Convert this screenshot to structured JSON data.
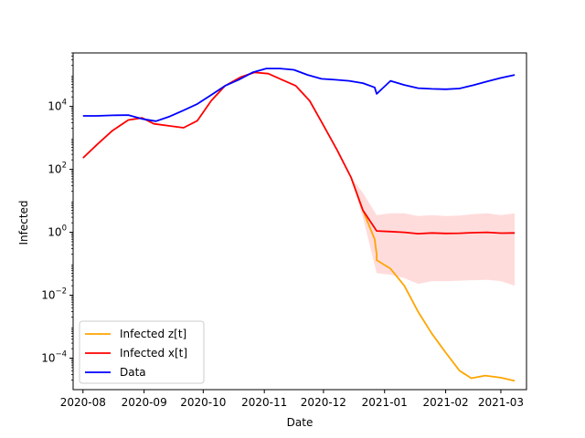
{
  "chart_data": {
    "type": "line",
    "title": "",
    "xlabel": "Date",
    "ylabel": "Infected",
    "yscale": "log",
    "ylim": [
      1e-05,
      500000
    ],
    "xlim": [
      "2020-07-27",
      "2021-03-14"
    ],
    "grid": false,
    "legend_position": "lower-left",
    "x_ticks": [
      "2020-08",
      "2020-09",
      "2020-10",
      "2020-11",
      "2020-12",
      "2021-01",
      "2021-02",
      "2021-03"
    ],
    "x_tick_dates": [
      "2020-08-01",
      "2020-09-01",
      "2020-10-01",
      "2020-11-01",
      "2020-12-01",
      "2021-01-01",
      "2021-02-01",
      "2021-03-01"
    ],
    "y_ticks": [
      {
        "value": 0.0001,
        "label_base": "10",
        "label_exp": "−4"
      },
      {
        "value": 0.01,
        "label_base": "10",
        "label_exp": "−2"
      },
      {
        "value": 1,
        "label_base": "10",
        "label_exp": "0"
      },
      {
        "value": 100,
        "label_base": "10",
        "label_exp": "2"
      },
      {
        "value": 10000,
        "label_base": "10",
        "label_exp": "4"
      }
    ],
    "band": {
      "color": "#ffdcdc",
      "points": [
        {
          "x": "2020-12-15",
          "lo": 55,
          "hi": 55
        },
        {
          "x": "2020-12-21",
          "lo": 3,
          "hi": 18
        },
        {
          "x": "2020-12-28",
          "lo": 0.05,
          "hi": 3.5
        },
        {
          "x": "2021-01-04",
          "lo": 0.045,
          "hi": 4
        },
        {
          "x": "2021-01-11",
          "lo": 0.035,
          "hi": 4
        },
        {
          "x": "2021-01-18",
          "lo": 0.023,
          "hi": 3.3
        },
        {
          "x": "2021-01-25",
          "lo": 0.028,
          "hi": 3.5
        },
        {
          "x": "2021-02-01",
          "lo": 0.028,
          "hi": 3.3
        },
        {
          "x": "2021-02-08",
          "lo": 0.029,
          "hi": 3.4
        },
        {
          "x": "2021-02-15",
          "lo": 0.03,
          "hi": 3.8
        },
        {
          "x": "2021-02-22",
          "lo": 0.031,
          "hi": 4
        },
        {
          "x": "2021-03-01",
          "lo": 0.028,
          "hi": 3.5
        },
        {
          "x": "2021-03-08",
          "lo": 0.02,
          "hi": 4
        }
      ]
    },
    "series": [
      {
        "name": "Infected z[t]",
        "color": "#ffa500",
        "points": [
          {
            "x": "2020-12-15",
            "y": 55
          },
          {
            "x": "2020-12-21",
            "y": 5
          },
          {
            "x": "2020-12-27",
            "y": 0.6
          },
          {
            "x": "2020-12-28",
            "y": 0.2
          },
          {
            "x": "2020-12-28",
            "y": 0.13
          },
          {
            "x": "2021-01-04",
            "y": 0.07
          },
          {
            "x": "2021-01-11",
            "y": 0.02
          },
          {
            "x": "2021-01-18",
            "y": 0.003
          },
          {
            "x": "2021-01-25",
            "y": 0.0006
          },
          {
            "x": "2021-02-01",
            "y": 0.00015
          },
          {
            "x": "2021-02-08",
            "y": 4e-05
          },
          {
            "x": "2021-02-14",
            "y": 2.3e-05
          },
          {
            "x": "2021-02-21",
            "y": 2.8e-05
          },
          {
            "x": "2021-03-01",
            "y": 2.4e-05
          },
          {
            "x": "2021-03-08",
            "y": 1.9e-05
          }
        ]
      },
      {
        "name": "Infected x[t]",
        "color": "#ff0000",
        "points": [
          {
            "x": "2020-08-01",
            "y": 230
          },
          {
            "x": "2020-08-08",
            "y": 600
          },
          {
            "x": "2020-08-16",
            "y": 1700
          },
          {
            "x": "2020-08-24",
            "y": 3700
          },
          {
            "x": "2020-08-31",
            "y": 4300
          },
          {
            "x": "2020-09-06",
            "y": 2800
          },
          {
            "x": "2020-09-14",
            "y": 2400
          },
          {
            "x": "2020-09-21",
            "y": 2100
          },
          {
            "x": "2020-09-28",
            "y": 3500
          },
          {
            "x": "2020-10-05",
            "y": 15000
          },
          {
            "x": "2020-10-12",
            "y": 45000
          },
          {
            "x": "2020-10-20",
            "y": 85000
          },
          {
            "x": "2020-10-27",
            "y": 120000
          },
          {
            "x": "2020-11-03",
            "y": 110000
          },
          {
            "x": "2020-11-10",
            "y": 70000
          },
          {
            "x": "2020-11-17",
            "y": 45000
          },
          {
            "x": "2020-11-24",
            "y": 15000
          },
          {
            "x": "2020-12-01",
            "y": 2500
          },
          {
            "x": "2020-12-08",
            "y": 400
          },
          {
            "x": "2020-12-15",
            "y": 55
          },
          {
            "x": "2020-12-21",
            "y": 5
          },
          {
            "x": "2020-12-28",
            "y": 1.1
          },
          {
            "x": "2021-01-04",
            "y": 1.05
          },
          {
            "x": "2021-01-11",
            "y": 1.0
          },
          {
            "x": "2021-01-18",
            "y": 0.9
          },
          {
            "x": "2021-01-25",
            "y": 0.95
          },
          {
            "x": "2021-02-01",
            "y": 0.92
          },
          {
            "x": "2021-02-08",
            "y": 0.93
          },
          {
            "x": "2021-02-15",
            "y": 0.97
          },
          {
            "x": "2021-02-22",
            "y": 1.0
          },
          {
            "x": "2021-03-01",
            "y": 0.94
          },
          {
            "x": "2021-03-08",
            "y": 0.95
          }
        ]
      },
      {
        "name": "Data",
        "color": "#0000ff",
        "points": [
          {
            "x": "2020-08-01",
            "y": 5000
          },
          {
            "x": "2020-08-08",
            "y": 5000
          },
          {
            "x": "2020-08-16",
            "y": 5200
          },
          {
            "x": "2020-08-24",
            "y": 5300
          },
          {
            "x": "2020-08-31",
            "y": 4000
          },
          {
            "x": "2020-09-07",
            "y": 3400
          },
          {
            "x": "2020-09-14",
            "y": 4800
          },
          {
            "x": "2020-09-21",
            "y": 7500
          },
          {
            "x": "2020-09-28",
            "y": 12000
          },
          {
            "x": "2020-10-05",
            "y": 23000
          },
          {
            "x": "2020-10-12",
            "y": 45000
          },
          {
            "x": "2020-10-19",
            "y": 70000
          },
          {
            "x": "2020-10-26",
            "y": 120000
          },
          {
            "x": "2020-11-02",
            "y": 160000
          },
          {
            "x": "2020-11-09",
            "y": 160000
          },
          {
            "x": "2020-11-16",
            "y": 145000
          },
          {
            "x": "2020-11-23",
            "y": 100000
          },
          {
            "x": "2020-11-30",
            "y": 75000
          },
          {
            "x": "2020-12-07",
            "y": 70000
          },
          {
            "x": "2020-12-14",
            "y": 65000
          },
          {
            "x": "2020-12-21",
            "y": 55000
          },
          {
            "x": "2020-12-27",
            "y": 40000
          },
          {
            "x": "2020-12-28",
            "y": 25000
          },
          {
            "x": "2021-01-04",
            "y": 65000
          },
          {
            "x": "2021-01-11",
            "y": 48000
          },
          {
            "x": "2021-01-18",
            "y": 38000
          },
          {
            "x": "2021-01-25",
            "y": 36000
          },
          {
            "x": "2021-02-01",
            "y": 35000
          },
          {
            "x": "2021-02-08",
            "y": 37000
          },
          {
            "x": "2021-02-15",
            "y": 47000
          },
          {
            "x": "2021-02-22",
            "y": 62000
          },
          {
            "x": "2021-03-01",
            "y": 80000
          },
          {
            "x": "2021-03-08",
            "y": 100000
          }
        ]
      }
    ]
  }
}
